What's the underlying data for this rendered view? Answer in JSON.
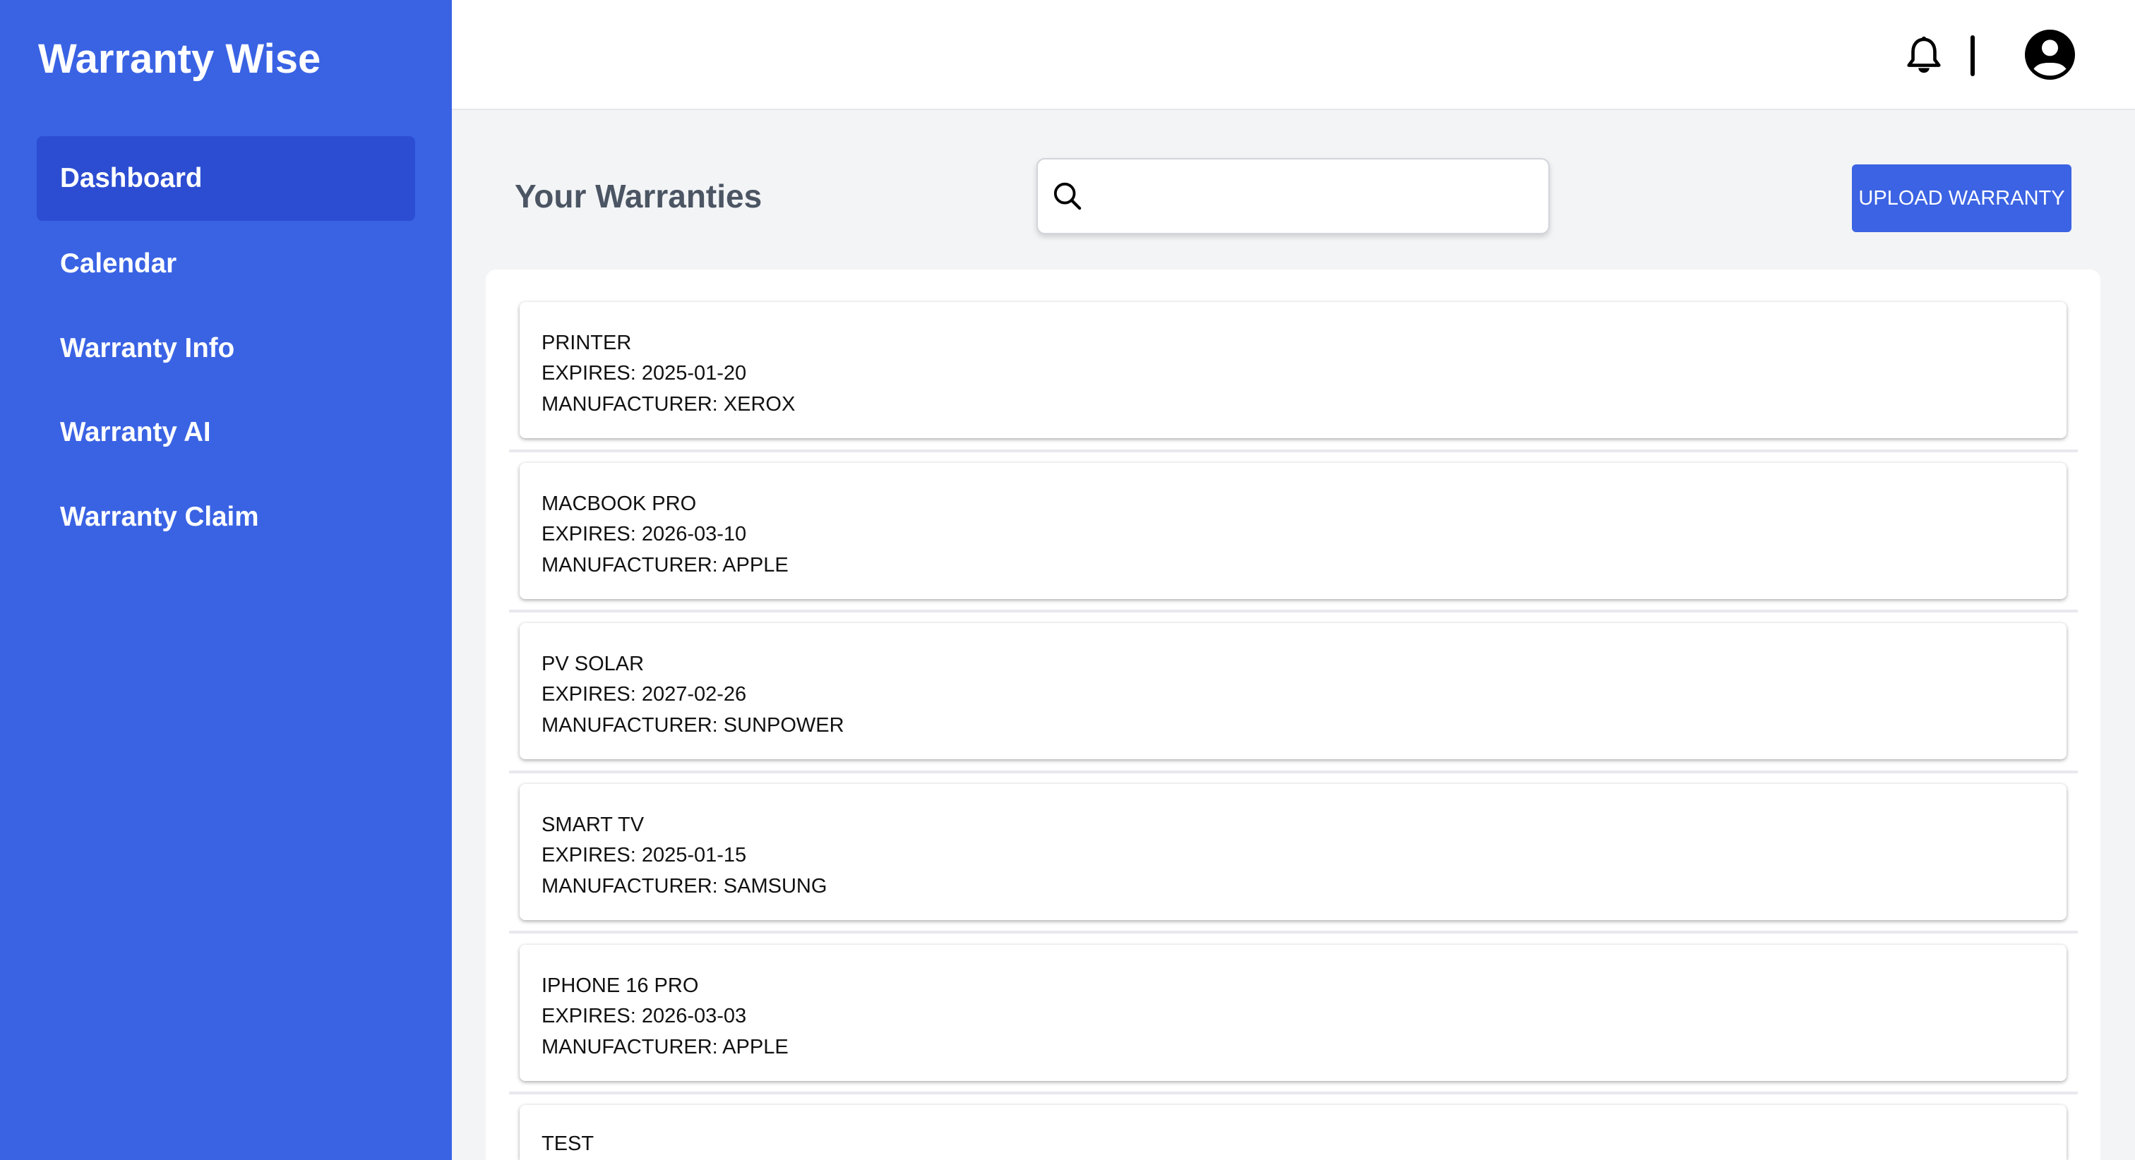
{
  "app": {
    "title": "Warranty Wise"
  },
  "sidebar": {
    "items": [
      {
        "label": "Dashboard",
        "active": true
      },
      {
        "label": "Calendar"
      },
      {
        "label": "Warranty Info"
      },
      {
        "label": "Warranty AI"
      },
      {
        "label": "Warranty Claim"
      }
    ]
  },
  "header": {
    "icons": [
      "bell-icon",
      "user-avatar-icon"
    ]
  },
  "main": {
    "title": "Your Warranties",
    "search": {
      "value": "",
      "placeholder": ""
    },
    "upload_label": "UPLOAD WARRANTY",
    "warranties": [
      {
        "name": "PRINTER",
        "expires": "EXPIRES: 2025-01-20",
        "manufacturer": "MANUFACTURER: XEROX"
      },
      {
        "name": "MACBOOK PRO",
        "expires": "EXPIRES: 2026-03-10",
        "manufacturer": "MANUFACTURER: APPLE"
      },
      {
        "name": "PV SOLAR",
        "expires": "EXPIRES: 2027-02-26",
        "manufacturer": "MANUFACTURER: SUNPOWER"
      },
      {
        "name": "SMART TV",
        "expires": "EXPIRES: 2025-01-15",
        "manufacturer": "MANUFACTURER: SAMSUNG"
      },
      {
        "name": "IPHONE 16 PRO",
        "expires": "EXPIRES: 2026-03-03",
        "manufacturer": "MANUFACTURER: APPLE"
      },
      {
        "name": "TEST"
      }
    ]
  },
  "colors": {
    "sidebar": "#3A63E4",
    "sidebar_active": "#2C4DD2",
    "button": "#3B63E3",
    "background": "#F3F4F6"
  }
}
